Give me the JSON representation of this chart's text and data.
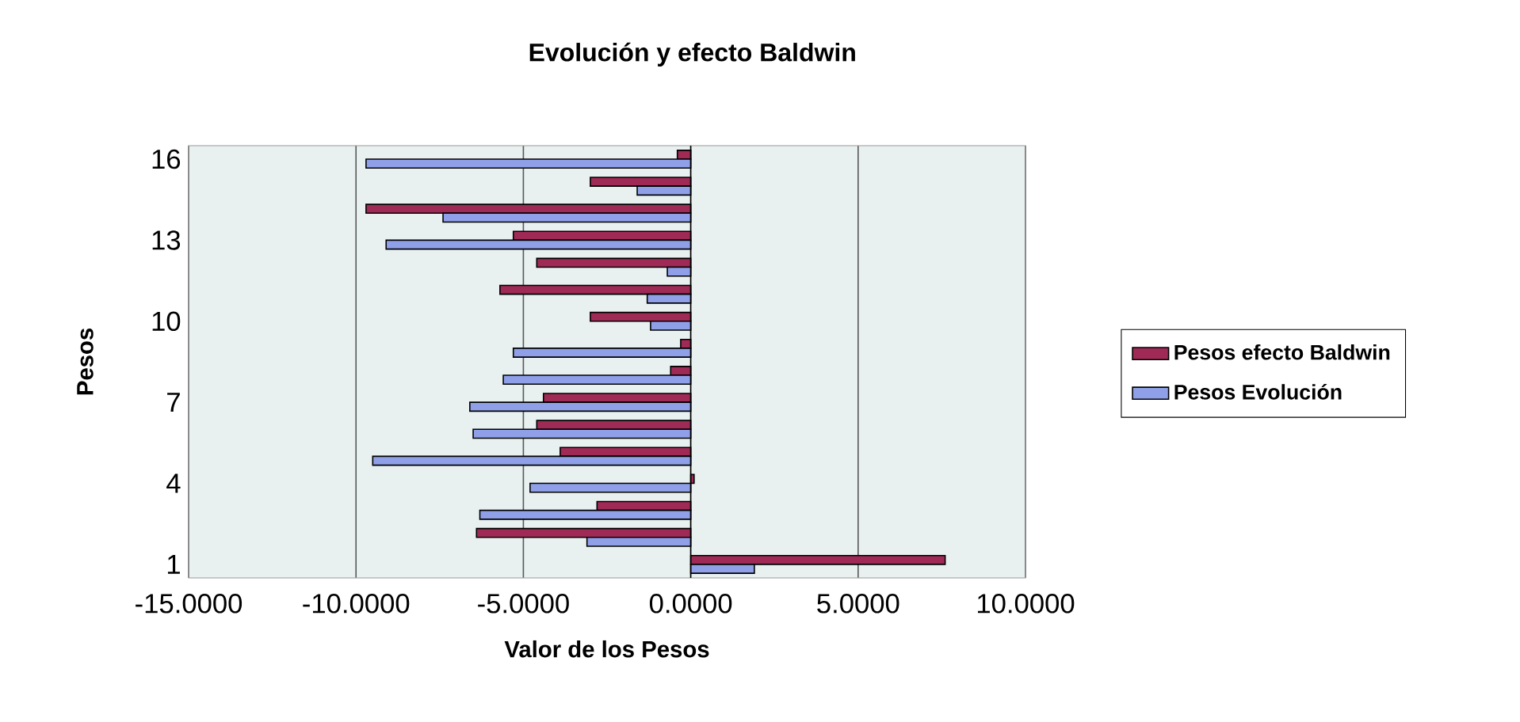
{
  "chart_data": {
    "type": "bar",
    "orientation": "horizontal",
    "title": "Evolución y efecto Baldwin",
    "xlabel": "Valor de los Pesos",
    "ylabel": "Pesos",
    "categories": [
      "16",
      null,
      null,
      "13",
      null,
      null,
      "10",
      null,
      null,
      "7",
      null,
      null,
      "4",
      null,
      null,
      "1"
    ],
    "series": [
      {
        "name": "Pesos efecto Baldwin",
        "color": "#9e2a55",
        "values": [
          -0.4,
          -3.0,
          -9.7,
          -5.3,
          -4.6,
          -5.7,
          -3.0,
          -0.3,
          -0.6,
          -4.4,
          -4.6,
          -3.9,
          0.1,
          -2.8,
          -6.4,
          7.6
        ]
      },
      {
        "name": "Pesos Evolución",
        "color": "#8fa0e8",
        "values": [
          -9.7,
          -1.6,
          -7.4,
          -9.1,
          -0.7,
          -1.3,
          -1.2,
          -5.3,
          -5.6,
          -6.6,
          -6.5,
          -9.5,
          -4.8,
          -6.3,
          -3.1,
          1.9
        ]
      }
    ],
    "xlim": [
      -15,
      10
    ],
    "xticks": [
      {
        "value": -15,
        "label": "-15.0000"
      },
      {
        "value": -10,
        "label": "-10.0000"
      },
      {
        "value": -5,
        "label": "-5.0000"
      },
      {
        "value": 0,
        "label": "0.0000"
      },
      {
        "value": 5,
        "label": "5.0000"
      },
      {
        "value": 10,
        "label": "10.0000"
      }
    ],
    "grid": "x",
    "legend": "right"
  }
}
